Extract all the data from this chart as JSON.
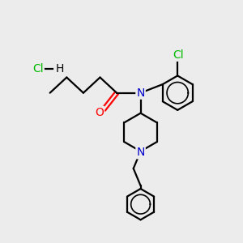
{
  "background_color": "#ececec",
  "bond_color": "#000000",
  "nitrogen_color": "#0000cc",
  "oxygen_color": "#ff0000",
  "chlorine_color": "#00bb00",
  "line_width": 1.6,
  "figsize": [
    3.0,
    3.0
  ],
  "dpi": 100,
  "xlim": [
    0,
    10
  ],
  "ylim": [
    0,
    10
  ],
  "hcl_x": 1.5,
  "hcl_y": 7.2
}
